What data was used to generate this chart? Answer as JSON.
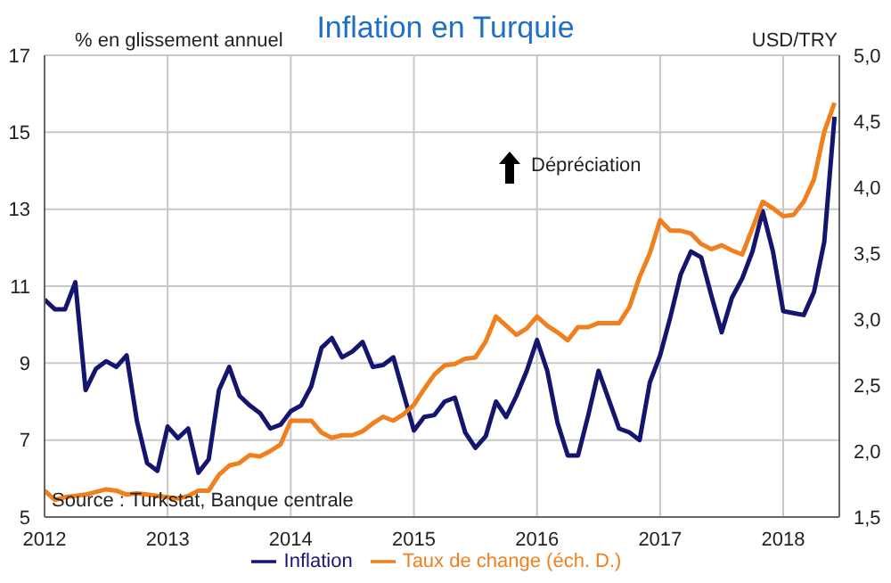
{
  "chart_data": {
    "type": "line",
    "title": "Inflation en Turquie",
    "ylabel": "% en glissement annuel",
    "y2label": "USD/TRY",
    "annotations": [
      "Dépréciation",
      "Source : Turkstat, Banque centrale"
    ],
    "x": [
      "2012-01",
      "2012-02",
      "2012-03",
      "2012-04",
      "2012-05",
      "2012-06",
      "2012-07",
      "2012-08",
      "2012-09",
      "2012-10",
      "2012-11",
      "2012-12",
      "2013-01",
      "2013-02",
      "2013-03",
      "2013-04",
      "2013-05",
      "2013-06",
      "2013-07",
      "2013-08",
      "2013-09",
      "2013-10",
      "2013-11",
      "2013-12",
      "2014-01",
      "2014-02",
      "2014-03",
      "2014-04",
      "2014-05",
      "2014-06",
      "2014-07",
      "2014-08",
      "2014-09",
      "2014-10",
      "2014-11",
      "2014-12",
      "2015-01",
      "2015-02",
      "2015-03",
      "2015-04",
      "2015-05",
      "2015-06",
      "2015-07",
      "2015-08",
      "2015-09",
      "2015-10",
      "2015-11",
      "2015-12",
      "2016-01",
      "2016-02",
      "2016-03",
      "2016-04",
      "2016-05",
      "2016-06",
      "2016-07",
      "2016-08",
      "2016-09",
      "2016-10",
      "2016-11",
      "2016-12",
      "2017-01",
      "2017-02",
      "2017-03",
      "2017-04",
      "2017-05",
      "2017-06",
      "2017-07",
      "2017-08",
      "2017-09",
      "2017-10",
      "2017-11",
      "2017-12",
      "2018-01",
      "2018-02",
      "2018-03",
      "2018-04",
      "2018-05",
      "2018-06"
    ],
    "series": [
      {
        "name": "Inflation",
        "color": "#14166e",
        "values": [
          10.65,
          10.4,
          10.4,
          11.1,
          8.3,
          8.85,
          9.05,
          8.9,
          9.2,
          7.5,
          6.4,
          6.2,
          7.35,
          7.05,
          7.3,
          6.15,
          6.5,
          8.3,
          8.9,
          8.15,
          7.9,
          7.7,
          7.3,
          7.4,
          7.75,
          7.9,
          8.4,
          9.4,
          9.65,
          9.15,
          9.3,
          9.55,
          8.9,
          8.95,
          9.15,
          8.2,
          7.25,
          7.6,
          7.65,
          8.0,
          8.1,
          7.2,
          6.8,
          7.1,
          8.0,
          7.6,
          8.15,
          8.8,
          9.6,
          8.8,
          7.45,
          6.6,
          6.6,
          7.65,
          8.8,
          8.05,
          7.3,
          7.2,
          7.0,
          8.5,
          9.2,
          10.2,
          11.3,
          11.9,
          11.75,
          10.75,
          9.8,
          10.7,
          11.2,
          11.9,
          12.95,
          11.9,
          10.35,
          10.3,
          10.25,
          10.85,
          12.15,
          15.4
        ]
      },
      {
        "name": "Taux de change (éch. D.)",
        "color": "#f07f1e",
        "axis": "y2",
        "values": [
          1.7,
          1.63,
          1.65,
          1.66,
          1.67,
          1.69,
          1.71,
          1.7,
          1.67,
          1.68,
          1.67,
          1.66,
          1.65,
          1.64,
          1.66,
          1.7,
          1.7,
          1.82,
          1.89,
          1.91,
          1.97,
          1.96,
          2.0,
          2.05,
          2.23,
          2.23,
          2.23,
          2.14,
          2.1,
          2.12,
          2.12,
          2.15,
          2.21,
          2.26,
          2.23,
          2.28,
          2.35,
          2.47,
          2.58,
          2.65,
          2.66,
          2.7,
          2.71,
          2.83,
          3.02,
          2.95,
          2.88,
          2.93,
          3.02,
          2.95,
          2.9,
          2.84,
          2.94,
          2.94,
          2.97,
          2.97,
          2.97,
          3.09,
          3.32,
          3.5,
          3.75,
          3.67,
          3.67,
          3.65,
          3.57,
          3.53,
          3.56,
          3.52,
          3.49,
          3.69,
          3.89,
          3.84,
          3.78,
          3.79,
          3.89,
          4.06,
          4.42,
          4.64
        ]
      }
    ],
    "xlim": [
      "2012-01",
      "2018-06-15"
    ],
    "xticks": [
      "2012",
      "2013",
      "2014",
      "2015",
      "2016",
      "2017",
      "2018"
    ],
    "ylim": [
      5,
      17
    ],
    "yticks": [
      5,
      7,
      9,
      11,
      13,
      15,
      17
    ],
    "y2lim": [
      1.5,
      5
    ],
    "y2ticks": [
      {
        "value": 1.5,
        "label": "1,5"
      },
      {
        "value": 2,
        "label": "2,0"
      },
      {
        "value": 2.5,
        "label": "2,5"
      },
      {
        "value": 3,
        "label": "3,0"
      },
      {
        "value": 3.5,
        "label": "3,5"
      },
      {
        "value": 4,
        "label": "4,0"
      },
      {
        "value": 4.5,
        "label": "4,5"
      },
      {
        "value": 5,
        "label": "5,0"
      }
    ],
    "grid": true,
    "legend": "bottom",
    "marker": "none",
    "line_style": "solid"
  }
}
